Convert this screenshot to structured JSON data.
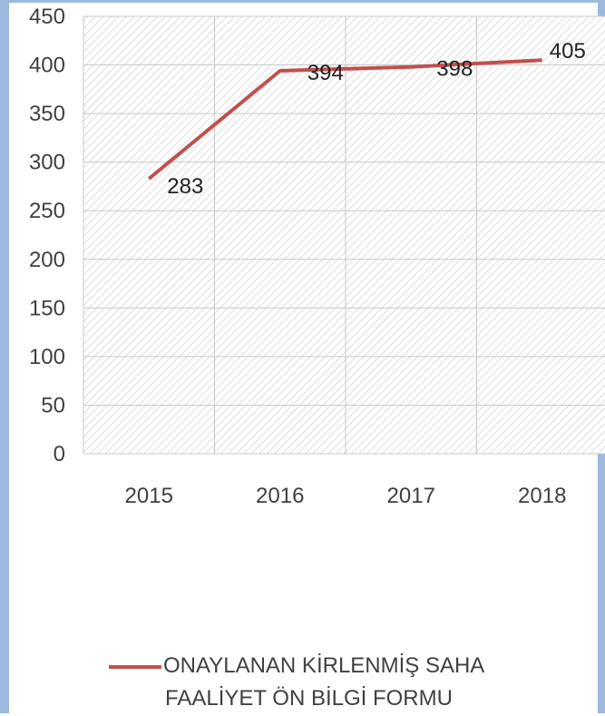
{
  "chart_data": {
    "type": "line",
    "categories": [
      "2015",
      "2016",
      "2017",
      "2018"
    ],
    "series": [
      {
        "name": "ONAYLANAN KİRLENMİŞ SAHA FAALİYET  ÖN BİLGİ FORMU",
        "values": [
          283,
          394,
          398,
          405
        ],
        "color": "#c0504d"
      }
    ],
    "yticks": [
      "0",
      "50",
      "100",
      "150",
      "200",
      "250",
      "300",
      "350",
      "400",
      "450"
    ],
    "ylim": [
      0,
      450
    ],
    "grid": true,
    "legend_position": "bottom"
  },
  "legend": {
    "line1": "ONAYLANAN KİRLENMİŞ SAHA",
    "line2": "FAALİYET  ÖN BİLGİ FORMU"
  }
}
